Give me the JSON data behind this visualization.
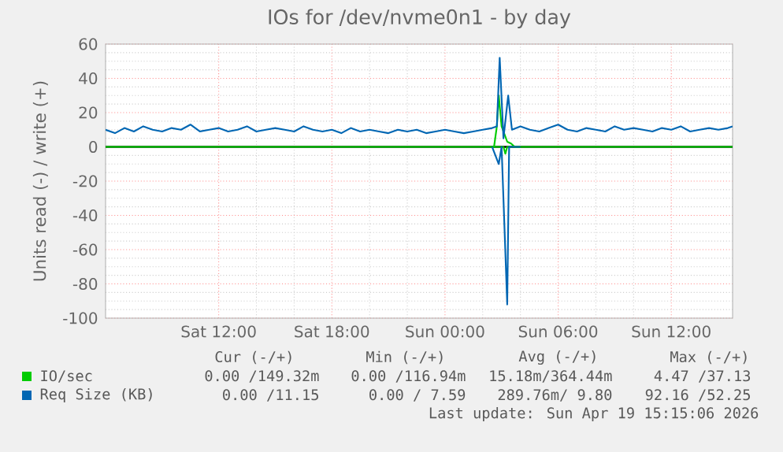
{
  "chart_data": {
    "type": "line",
    "title": "IOs for /dev/nvme0n1 - by day",
    "ylabel": "Units read (-) / write (+)",
    "xlim": [
      "2026-04-18T06:00",
      "2026-04-19T15:15"
    ],
    "xticks": [
      {
        "value": "2026-04-18T12:00",
        "label": "Sat 12:00"
      },
      {
        "value": "2026-04-18T18:00",
        "label": "Sat 18:00"
      },
      {
        "value": "2026-04-19T00:00",
        "label": "Sun 00:00"
      },
      {
        "value": "2026-04-19T06:00",
        "label": "Sun 06:00"
      },
      {
        "value": "2026-04-19T12:00",
        "label": "Sun 12:00"
      }
    ],
    "ylim": [
      -100,
      60
    ],
    "yticks": [
      -100,
      -80,
      -60,
      -40,
      -20,
      0,
      20,
      40,
      60
    ],
    "grid": true,
    "legend": "bottom left",
    "marker": "none",
    "line_style": "solid",
    "ref_lines": [
      {
        "axis": "y",
        "value": 0,
        "color": "#000000"
      }
    ],
    "series": [
      {
        "name": "IO/sec",
        "color": "#00cc00",
        "x": [
          "2026-04-18T06:00",
          "2026-04-19T02:36",
          "2026-04-19T02:45",
          "2026-04-19T02:51",
          "2026-04-19T03:00",
          "2026-04-19T03:18",
          "2026-04-19T03:30",
          "2026-04-19T03:42",
          "2026-04-19T15:15"
        ],
        "values": [
          0,
          0,
          12,
          30,
          12,
          3,
          2,
          0,
          0
        ]
      },
      {
        "color": "#00cc00",
        "x": [
          "2026-04-19T02:30",
          "2026-04-19T03:06",
          "2026-04-19T03:12",
          "2026-04-19T03:18",
          "2026-04-19T04:00"
        ],
        "values": [
          0,
          0,
          -4,
          0,
          0
        ]
      },
      {
        "name": "Req Size (KB)",
        "color": "#0066b3",
        "x": [
          "2026-04-18T06:00",
          "2026-04-18T06:30",
          "2026-04-18T07:00",
          "2026-04-18T07:30",
          "2026-04-18T08:00",
          "2026-04-18T08:30",
          "2026-04-18T09:00",
          "2026-04-18T09:30",
          "2026-04-18T10:00",
          "2026-04-18T10:30",
          "2026-04-18T11:00",
          "2026-04-18T11:30",
          "2026-04-18T12:00",
          "2026-04-18T12:30",
          "2026-04-18T13:00",
          "2026-04-18T13:30",
          "2026-04-18T14:00",
          "2026-04-18T14:30",
          "2026-04-18T15:00",
          "2026-04-18T15:30",
          "2026-04-18T16:00",
          "2026-04-18T16:30",
          "2026-04-18T17:00",
          "2026-04-18T17:30",
          "2026-04-18T18:00",
          "2026-04-18T18:30",
          "2026-04-18T19:00",
          "2026-04-18T19:30",
          "2026-04-18T20:00",
          "2026-04-18T20:30",
          "2026-04-18T21:00",
          "2026-04-18T21:30",
          "2026-04-18T22:00",
          "2026-04-18T22:30",
          "2026-04-18T23:00",
          "2026-04-18T23:30",
          "2026-04-19T00:00",
          "2026-04-19T00:30",
          "2026-04-19T01:00",
          "2026-04-19T01:30",
          "2026-04-19T02:00",
          "2026-04-19T02:30",
          "2026-04-19T02:45",
          "2026-04-19T02:54",
          "2026-04-19T03:06",
          "2026-04-19T03:21",
          "2026-04-19T03:33",
          "2026-04-19T04:00",
          "2026-04-19T04:30",
          "2026-04-19T05:00",
          "2026-04-19T05:30",
          "2026-04-19T06:00",
          "2026-04-19T06:30",
          "2026-04-19T07:00",
          "2026-04-19T07:30",
          "2026-04-19T08:00",
          "2026-04-19T08:30",
          "2026-04-19T09:00",
          "2026-04-19T09:30",
          "2026-04-19T10:00",
          "2026-04-19T10:30",
          "2026-04-19T11:00",
          "2026-04-19T11:30",
          "2026-04-19T12:00",
          "2026-04-19T12:30",
          "2026-04-19T13:00",
          "2026-04-19T13:30",
          "2026-04-19T14:00",
          "2026-04-19T14:30",
          "2026-04-19T15:00",
          "2026-04-19T15:15"
        ],
        "values": [
          10,
          8,
          11,
          9,
          12,
          10,
          9,
          11,
          10,
          13,
          9,
          10,
          11,
          9,
          10,
          12,
          9,
          10,
          11,
          10,
          9,
          12,
          10,
          9,
          10,
          8,
          11,
          9,
          10,
          9,
          8,
          10,
          9,
          10,
          8,
          9,
          10,
          9,
          8,
          9,
          10,
          11,
          12,
          52,
          5,
          30,
          10,
          12,
          10,
          9,
          11,
          13,
          10,
          9,
          11,
          10,
          9,
          12,
          10,
          11,
          10,
          9,
          11,
          10,
          12,
          9,
          10,
          11,
          10,
          11,
          12
        ]
      },
      {
        "color": "#0066b3",
        "x": [
          "2026-04-19T02:30",
          "2026-04-19T02:51",
          "2026-04-19T03:00",
          "2026-04-19T03:18",
          "2026-04-19T03:24",
          "2026-04-19T04:00"
        ],
        "values": [
          0,
          -10,
          0,
          -92,
          0,
          0
        ]
      }
    ],
    "annotations": [
      "Cur (-/+)",
      "Min (-/+)",
      "Avg (-/+)",
      "Max (-/+)",
      "0.00 /149.32m",
      "0.00 /116.94m",
      "15.18m/364.44m",
      "4.47 /37.13",
      "0.00 /11.15",
      "0.00 / 7.59",
      "289.76m/ 9.80",
      "92.16 /52.25",
      "Last update: Sun Apr 19 15:15:06 2026"
    ]
  }
}
